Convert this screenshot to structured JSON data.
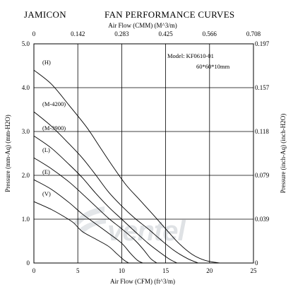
{
  "header": {
    "brand": "JAMICON",
    "title": "FAN PERFORMANCE CURVES"
  },
  "chart_data": {
    "type": "line",
    "brand": "JAMICON",
    "title": "FAN PERFORMANCE CURVES",
    "xlabel_bottom": "Air Flow (CFM) (ft^3/m)",
    "xlabel_top": "Air Flow (CMM) (M^3/m)",
    "ylabel_left": "Pressure (mm-Aq) (mm-H2O)",
    "ylabel_right": "Pressure (inch-Aq) (inch-H2O)",
    "xlim": [
      0,
      25
    ],
    "ylim": [
      0,
      5.0
    ],
    "x_ticks_bottom": [
      "0",
      "5",
      "10",
      "15",
      "20",
      "25"
    ],
    "x_ticks_top": [
      "0",
      "0.142",
      "0.283",
      "0.425",
      "0.566",
      "0.708"
    ],
    "y_ticks_left": [
      "0",
      "1.0",
      "2.0",
      "3.0",
      "4.0",
      "5.0"
    ],
    "y_ticks_right": [
      "0",
      "0.039",
      "0.079",
      "0.118",
      "0.157",
      "0.197"
    ],
    "grid": true,
    "annotation": {
      "model": "Model:   KF0610-01",
      "size": "60*60*10mm"
    },
    "watermark": "ventel",
    "series": [
      {
        "name": "(H)",
        "points": [
          [
            0,
            4.4
          ],
          [
            2,
            4.08
          ],
          [
            4,
            3.6
          ],
          [
            6,
            3.1
          ],
          [
            7.5,
            2.65
          ],
          [
            9,
            2.2
          ],
          [
            10.5,
            1.78
          ],
          [
            12,
            1.45
          ],
          [
            13.5,
            1.12
          ],
          [
            15,
            0.78
          ],
          [
            16.5,
            0.45
          ],
          [
            18,
            0.2
          ],
          [
            19.5,
            0.06
          ],
          [
            21.2,
            0
          ]
        ]
      },
      {
        "name": "(M-4200)",
        "points": [
          [
            0,
            3.45
          ],
          [
            2,
            3.12
          ],
          [
            4,
            2.72
          ],
          [
            5.5,
            2.4
          ],
          [
            7,
            2.02
          ],
          [
            8.5,
            1.62
          ],
          [
            10,
            1.3
          ],
          [
            11.5,
            1.02
          ],
          [
            13,
            0.78
          ],
          [
            14.5,
            0.52
          ],
          [
            16,
            0.28
          ],
          [
            17.5,
            0.1
          ],
          [
            18.7,
            0
          ]
        ]
      },
      {
        "name": "(M-3900)",
        "points": [
          [
            0,
            2.9
          ],
          [
            2,
            2.62
          ],
          [
            4,
            2.25
          ],
          [
            5.5,
            1.95
          ],
          [
            7,
            1.6
          ],
          [
            8.5,
            1.28
          ],
          [
            10,
            1.0
          ],
          [
            11.5,
            0.72
          ],
          [
            13,
            0.45
          ],
          [
            14.5,
            0.22
          ],
          [
            15.5,
            0.08
          ],
          [
            16.3,
            0
          ]
        ]
      },
      {
        "name": "(L)",
        "points": [
          [
            0,
            2.4
          ],
          [
            2,
            2.15
          ],
          [
            4,
            1.85
          ],
          [
            5.5,
            1.58
          ],
          [
            7,
            1.3
          ],
          [
            8.5,
            1.02
          ],
          [
            10,
            0.78
          ],
          [
            11.5,
            0.52
          ],
          [
            12.5,
            0.3
          ],
          [
            13.3,
            0.1
          ],
          [
            14.0,
            0
          ]
        ]
      },
      {
        "name": "(E)",
        "points": [
          [
            0,
            1.9
          ],
          [
            2,
            1.68
          ],
          [
            4,
            1.38
          ],
          [
            5.5,
            1.12
          ],
          [
            7,
            0.9
          ],
          [
            8.5,
            0.68
          ],
          [
            10,
            0.45
          ],
          [
            11,
            0.22
          ],
          [
            11.8,
            0.06
          ],
          [
            12.4,
            0
          ]
        ]
      },
      {
        "name": "(V)",
        "points": [
          [
            0,
            1.4
          ],
          [
            2,
            1.22
          ],
          [
            3.5,
            1.05
          ],
          [
            4.5,
            0.92
          ],
          [
            5.5,
            0.72
          ],
          [
            7,
            0.55
          ],
          [
            8.5,
            0.38
          ],
          [
            9.5,
            0.2
          ],
          [
            10.3,
            0.06
          ],
          [
            10.8,
            0
          ]
        ]
      }
    ]
  }
}
